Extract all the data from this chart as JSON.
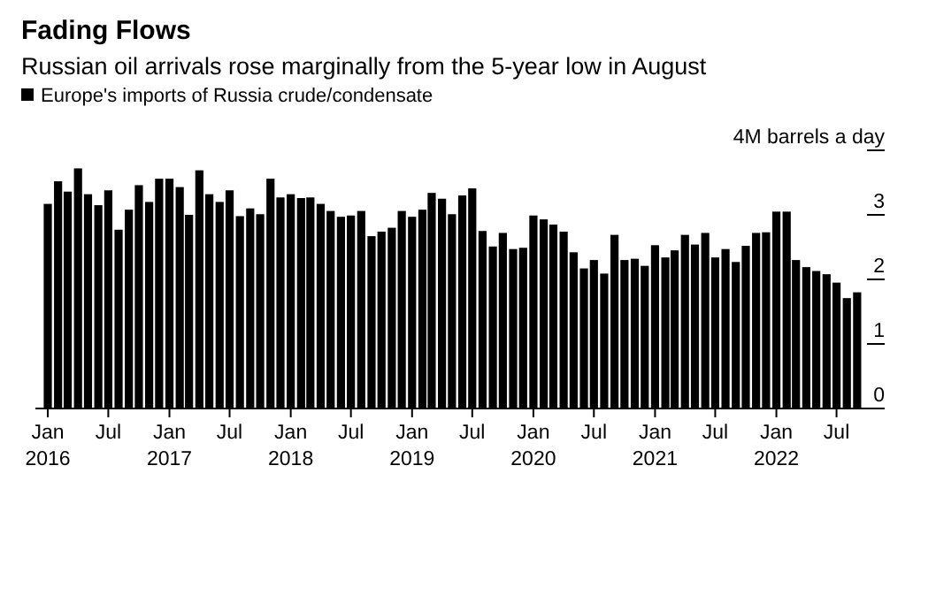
{
  "chart_data": {
    "type": "bar",
    "title": "Fading Flows",
    "subtitle": "Russian oil arrivals rose marginally from the 5-year low in August",
    "x": [
      "2016-01",
      "2016-02",
      "2016-03",
      "2016-04",
      "2016-05",
      "2016-06",
      "2016-07",
      "2016-08",
      "2016-09",
      "2016-10",
      "2016-11",
      "2016-12",
      "2017-01",
      "2017-02",
      "2017-03",
      "2017-04",
      "2017-05",
      "2017-06",
      "2017-07",
      "2017-08",
      "2017-09",
      "2017-10",
      "2017-11",
      "2017-12",
      "2018-01",
      "2018-02",
      "2018-03",
      "2018-04",
      "2018-05",
      "2018-06",
      "2018-07",
      "2018-08",
      "2018-09",
      "2018-10",
      "2018-11",
      "2018-12",
      "2019-01",
      "2019-02",
      "2019-03",
      "2019-04",
      "2019-05",
      "2019-06",
      "2019-07",
      "2019-08",
      "2019-09",
      "2019-10",
      "2019-11",
      "2019-12",
      "2020-01",
      "2020-02",
      "2020-03",
      "2020-04",
      "2020-05",
      "2020-06",
      "2020-07",
      "2020-08",
      "2020-09",
      "2020-10",
      "2020-11",
      "2020-12",
      "2021-01",
      "2021-02",
      "2021-03",
      "2021-04",
      "2021-05",
      "2021-06",
      "2021-07",
      "2021-08",
      "2021-09",
      "2021-10",
      "2021-11",
      "2021-12",
      "2022-01",
      "2022-02",
      "2022-03",
      "2022-04",
      "2022-05",
      "2022-06",
      "2022-07",
      "2022-08",
      "2022-09"
    ],
    "series": [
      {
        "name": "Europe's imports of Russia crude/condensate",
        "color": "#000000",
        "values": [
          3.17,
          3.52,
          3.36,
          3.72,
          3.32,
          3.15,
          3.38,
          2.77,
          3.08,
          3.46,
          3.2,
          3.56,
          3.56,
          3.43,
          3.0,
          3.69,
          3.32,
          3.2,
          3.38,
          2.98,
          3.1,
          3.01,
          3.56,
          3.27,
          3.32,
          3.26,
          3.27,
          3.17,
          3.06,
          2.97,
          2.99,
          3.06,
          2.67,
          2.74,
          2.8,
          3.06,
          2.97,
          3.08,
          3.34,
          3.25,
          3.01,
          3.3,
          3.41,
          2.75,
          2.51,
          2.72,
          2.47,
          2.49,
          2.99,
          2.93,
          2.85,
          2.74,
          2.42,
          2.17,
          2.3,
          2.09,
          2.69,
          2.3,
          2.32,
          2.21,
          2.53,
          2.34,
          2.45,
          2.69,
          2.54,
          2.72,
          2.34,
          2.47,
          2.27,
          2.52,
          2.72,
          2.73,
          3.05,
          3.05,
          2.3,
          2.19,
          2.13,
          2.08,
          1.95,
          1.71,
          1.8
        ]
      }
    ],
    "xlim": [
      "2015-12-16",
      "2022-09-20"
    ],
    "xticks": [
      {
        "value": "2016-01",
        "label": "Jan\n2016"
      },
      {
        "value": "2016-07",
        "label": "Jul"
      },
      {
        "value": "2017-01",
        "label": "Jan\n2017"
      },
      {
        "value": "2017-07",
        "label": "Jul"
      },
      {
        "value": "2018-01",
        "label": "Jan\n2018"
      },
      {
        "value": "2018-07",
        "label": "Jul"
      },
      {
        "value": "2019-01",
        "label": "Jan\n2019"
      },
      {
        "value": "2019-07",
        "label": "Jul"
      },
      {
        "value": "2020-01",
        "label": "Jan\n2020"
      },
      {
        "value": "2020-07",
        "label": "Jul"
      },
      {
        "value": "2021-01",
        "label": "Jan\n2021"
      },
      {
        "value": "2021-07",
        "label": "Jul"
      },
      {
        "value": "2022-01",
        "label": "Jan\n2022"
      },
      {
        "value": "2022-07",
        "label": "Jul"
      }
    ],
    "ylim": [
      0,
      4
    ],
    "yticks": [
      0,
      1,
      2,
      3,
      {
        "value": 4,
        "label": "4M barrels a day"
      }
    ],
    "legend": "top left"
  }
}
